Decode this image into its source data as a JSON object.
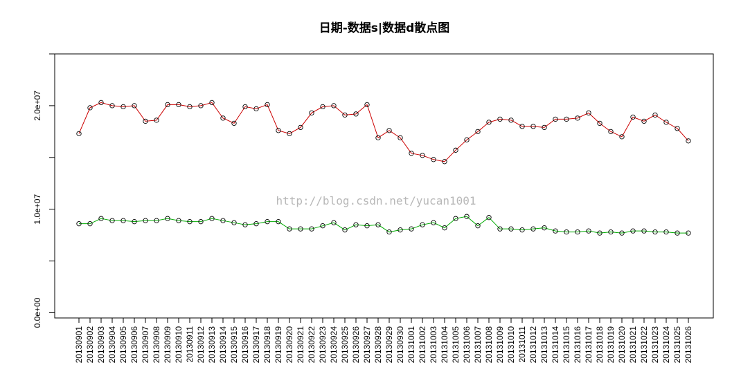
{
  "chart_data": {
    "type": "line",
    "title": "日期-数据s|数据d散点图",
    "xlabel": "",
    "ylabel": "",
    "ylim": [
      -500000,
      25000000
    ],
    "y_ticks": [
      0,
      10000000,
      20000000
    ],
    "y_tick_labels": [
      "0.0e+00",
      "1.0e+07",
      "2.0e+07"
    ],
    "categories": [
      "20130901",
      "20130902",
      "20130903",
      "20130904",
      "20130905",
      "20130906",
      "20130907",
      "20130908",
      "20130909",
      "20130910",
      "20130911",
      "20130912",
      "20130913",
      "20130914",
      "20130915",
      "20130916",
      "20130917",
      "20130918",
      "20130919",
      "20130920",
      "20130921",
      "20130922",
      "20130923",
      "20130924",
      "20130925",
      "20130926",
      "20130927",
      "20130928",
      "20130929",
      "20130930",
      "20131001",
      "20131002",
      "20131003",
      "20131004",
      "20131005",
      "20131006",
      "20131007",
      "20131008",
      "20131009",
      "20131010",
      "20131011",
      "20131012",
      "20131013",
      "20131014",
      "20131015",
      "20131016",
      "20131017",
      "20131018",
      "20131019",
      "20131020",
      "20131021",
      "20131022",
      "20131023",
      "20131024",
      "20131025",
      "20131026"
    ],
    "series": [
      {
        "name": "",
        "color": "#cc0000",
        "values": [
          17300000,
          19800000,
          20300000,
          20000000,
          19900000,
          20000000,
          18500000,
          18600000,
          20100000,
          20100000,
          19900000,
          20000000,
          20300000,
          18800000,
          18300000,
          19900000,
          19700000,
          20100000,
          17600000,
          17300000,
          17900000,
          19300000,
          19900000,
          20000000,
          19100000,
          19200000,
          20100000,
          16900000,
          17600000,
          16900000,
          15400000,
          15200000,
          14800000,
          14600000,
          15700000,
          16700000,
          17500000,
          18400000,
          18700000,
          18600000,
          18000000,
          18000000,
          17900000,
          18700000,
          18700000,
          18800000,
          19300000,
          18300000,
          17500000,
          17000000,
          18900000,
          18500000,
          19100000,
          18400000,
          17800000,
          16600000
        ]
      },
      {
        "name": "",
        "color": "#00aa00",
        "values": [
          8600000,
          8600000,
          9100000,
          8900000,
          8900000,
          8800000,
          8900000,
          8900000,
          9100000,
          8900000,
          8800000,
          8800000,
          9100000,
          8900000,
          8700000,
          8500000,
          8600000,
          8800000,
          8800000,
          8100000,
          8100000,
          8100000,
          8400000,
          8700000,
          8000000,
          8500000,
          8400000,
          8500000,
          7800000,
          8000000,
          8100000,
          8500000,
          8700000,
          8200000,
          9100000,
          9300000,
          8400000,
          9200000,
          8100000,
          8100000,
          8000000,
          8100000,
          8200000,
          7900000,
          7800000,
          7800000,
          7900000,
          7700000,
          7800000,
          7700000,
          7900000,
          7900000,
          7800000,
          7800000,
          7700000,
          7700000
        ]
      }
    ]
  },
  "watermark": "http://blog.csdn.net/yucan1001"
}
